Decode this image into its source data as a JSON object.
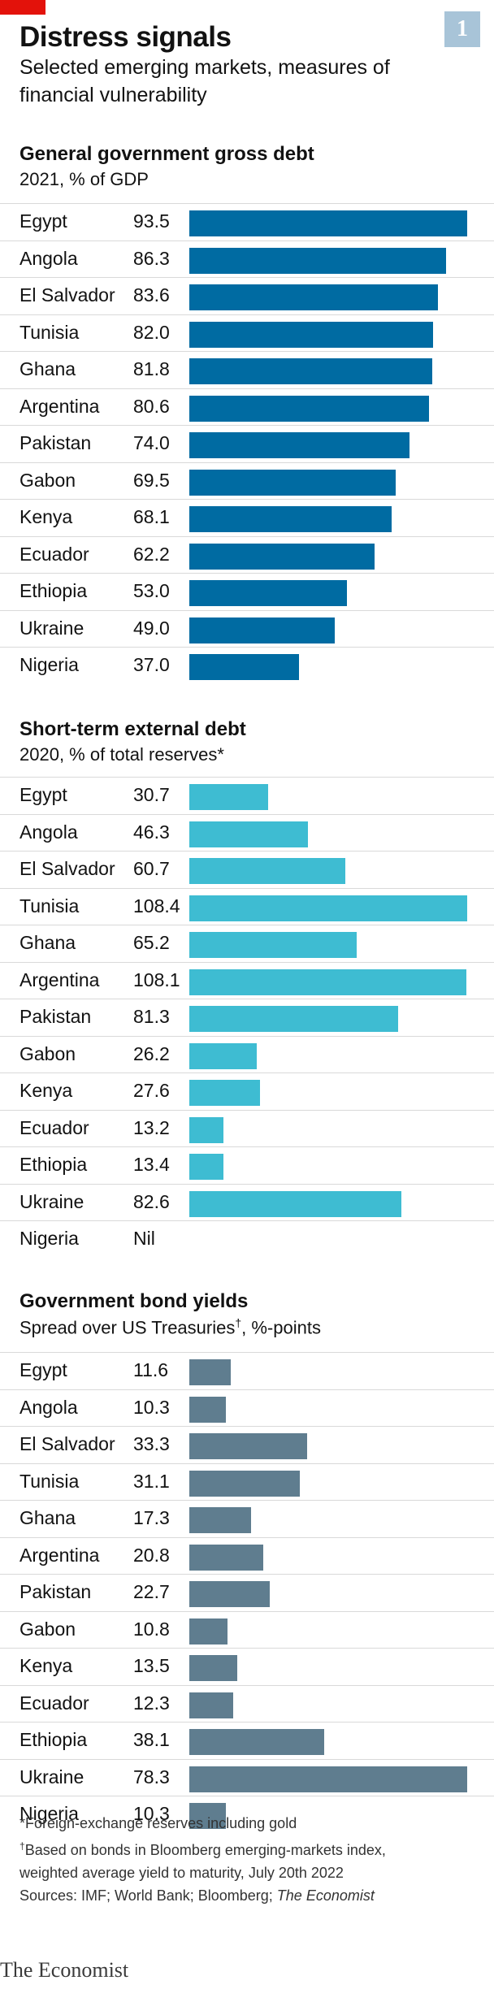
{
  "header": {
    "title": "Distress signals",
    "subtitle": "Selected emerging markets, measures of financial vulnerability",
    "chart_number": "1"
  },
  "chart_data": [
    {
      "type": "bar",
      "orientation": "horizontal",
      "title": "General government gross debt",
      "subtitle": "2021, % of GDP",
      "categories": [
        "Egypt",
        "Angola",
        "El Salvador",
        "Tunisia",
        "Ghana",
        "Argentina",
        "Pakistan",
        "Gabon",
        "Kenya",
        "Ecuador",
        "Ethiopia",
        "Ukraine",
        "Nigeria"
      ],
      "values": [
        93.5,
        86.3,
        83.6,
        82.0,
        81.8,
        80.6,
        74.0,
        69.5,
        68.1,
        62.2,
        53.0,
        49.0,
        37.0
      ],
      "labels": [
        "93.5",
        "86.3",
        "83.6",
        "82.0",
        "81.8",
        "80.6",
        "74.0",
        "69.5",
        "68.1",
        "62.2",
        "53.0",
        "49.0",
        "37.0"
      ],
      "color": "#006ba2",
      "xlim": [
        0,
        93.5
      ]
    },
    {
      "type": "bar",
      "orientation": "horizontal",
      "title": "Short-term external debt",
      "subtitle": "2020, % of total reserves*",
      "categories": [
        "Egypt",
        "Angola",
        "El Salvador",
        "Tunisia",
        "Ghana",
        "Argentina",
        "Pakistan",
        "Gabon",
        "Kenya",
        "Ecuador",
        "Ethiopia",
        "Ukraine",
        "Nigeria"
      ],
      "values": [
        30.7,
        46.3,
        60.7,
        108.4,
        65.2,
        108.1,
        81.3,
        26.2,
        27.6,
        13.2,
        13.4,
        82.6,
        0
      ],
      "labels": [
        "30.7",
        "46.3",
        "60.7",
        "108.4",
        "65.2",
        "108.1",
        "81.3",
        "26.2",
        "27.6",
        "13.2",
        "13.4",
        "82.6",
        "Nil"
      ],
      "color": "#3ebcd2",
      "xlim": [
        0,
        108.4
      ]
    },
    {
      "type": "bar",
      "orientation": "horizontal",
      "title": "Government bond yields",
      "subtitle": "Spread over US Treasuries",
      "subtitle_mark": "†",
      "subtitle_tail": ", %-points",
      "categories": [
        "Egypt",
        "Angola",
        "El Salvador",
        "Tunisia",
        "Ghana",
        "Argentina",
        "Pakistan",
        "Gabon",
        "Kenya",
        "Ecuador",
        "Ethiopia",
        "Ukraine",
        "Nigeria"
      ],
      "values": [
        11.6,
        10.3,
        33.3,
        31.1,
        17.3,
        20.8,
        22.7,
        10.8,
        13.5,
        12.3,
        38.1,
        78.3,
        10.3
      ],
      "labels": [
        "11.6",
        "10.3",
        "33.3",
        "31.1",
        "17.3",
        "20.8",
        "22.7",
        "10.8",
        "13.5",
        "12.3",
        "38.1",
        "78.3",
        "10.3"
      ],
      "color": "#5f7d8f",
      "xlim": [
        0,
        78.3
      ]
    }
  ],
  "footnotes": {
    "note1": "*Foreign-exchange reserves including gold",
    "note2_mark": "†",
    "note2a": "Based on bonds in Bloomberg emerging-markets index,",
    "note2b": "weighted average yield to maturity, July 20th 2022",
    "sources": "Sources: IMF; World Bank; Bloomberg; ",
    "sources_italic": "The Economist"
  },
  "brand": "The Economist"
}
